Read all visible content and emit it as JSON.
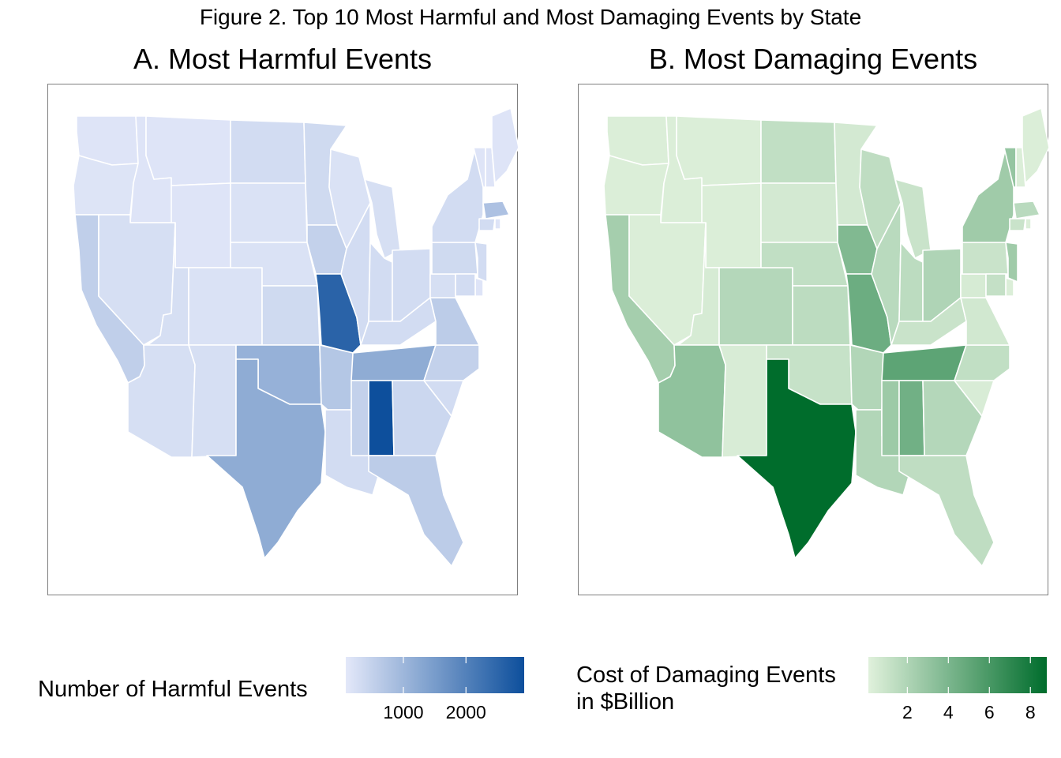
{
  "figure_title": "Figure 2. Top 10 Most Harmful and Most Damaging Events by State",
  "panels": {
    "a": {
      "title": "A. Most Harmful Events",
      "legend_title": "Number of Harmful Events",
      "legend_ticks": [
        "1000",
        "2000"
      ],
      "legend_tick_values": [
        1000,
        2000
      ],
      "legend_range": [
        80,
        2930
      ],
      "low_color": "#e3e8f9",
      "high_color": "#0d4f9c",
      "border_color": "#ffffff"
    },
    "b": {
      "title": "B. Most Damaging Events",
      "legend_title_lines": [
        "Cost of Damaging Events",
        "in $Billion"
      ],
      "legend_ticks": [
        "2",
        "4",
        "6",
        "8"
      ],
      "legend_tick_values": [
        2,
        4,
        6,
        8
      ],
      "legend_range": [
        0.1,
        8.8
      ],
      "low_color": "#e0f1dc",
      "high_color": "#006d2c",
      "border_color": "#ffffff"
    }
  },
  "chart_data": [
    {
      "type": "choropleth",
      "title": "A. Most Harmful Events",
      "legend_title": "Number of Harmful Events",
      "value_range": [
        80,
        2930
      ],
      "values": {
        "WA": 150,
        "OR": 160,
        "CA": 550,
        "ID": 150,
        "NV": 250,
        "MT": 150,
        "WY": 150,
        "UT": 250,
        "AZ": 250,
        "CO": 200,
        "NM": 250,
        "ND": 300,
        "SD": 200,
        "NE": 200,
        "KS": 350,
        "OK": 1100,
        "TX": 1200,
        "MN": 350,
        "IA": 500,
        "MO": 2550,
        "AR": 700,
        "LA": 300,
        "WI": 200,
        "IL": 300,
        "MI": 250,
        "IN": 300,
        "OH": 300,
        "KY": 300,
        "TN": 1200,
        "MS": 500,
        "AL": 2930,
        "GA": 400,
        "FL": 600,
        "SC": 300,
        "NC": 500,
        "VA": 600,
        "WV": 250,
        "PA": 350,
        "NY": 300,
        "VT": 150,
        "NH": 150,
        "ME": 150,
        "MA": 800,
        "CT": 300,
        "RI": 150,
        "NJ": 300,
        "DE": 150,
        "MD": 300
      }
    },
    {
      "type": "choropleth",
      "title": "B. Most Damaging Events",
      "legend_title": "Cost of Damaging Events in $Billion",
      "value_range": [
        0.1,
        8.8
      ],
      "values": {
        "WA": 0.3,
        "OR": 0.3,
        "CA": 2.4,
        "ID": 0.3,
        "NV": 0.3,
        "MT": 0.3,
        "WY": 0.3,
        "UT": 0.5,
        "AZ": 3.2,
        "CO": 1.8,
        "NM": 0.4,
        "ND": 1.3,
        "SD": 0.6,
        "NE": 1.3,
        "KS": 1.5,
        "OK": 1.1,
        "TX": 8.8,
        "MN": 0.6,
        "IA": 3.8,
        "MO": 4.6,
        "AR": 1.9,
        "LA": 1.9,
        "WI": 1.4,
        "IL": 1.6,
        "MI": 1.0,
        "IN": 1.5,
        "OH": 2.0,
        "KY": 1.0,
        "TN": 5.2,
        "MS": 2.7,
        "AL": 4.4,
        "GA": 1.8,
        "FL": 1.4,
        "SC": 0.4,
        "NC": 1.3,
        "VA": 0.7,
        "WV": 0.5,
        "PA": 1.0,
        "NY": 2.6,
        "VT": 3.0,
        "NH": 0.3,
        "ME": 0.3,
        "MA": 1.6,
        "CT": 1.0,
        "RI": 0.3,
        "NJ": 2.6,
        "DE": 0.3,
        "MD": 1.2
      }
    }
  ]
}
